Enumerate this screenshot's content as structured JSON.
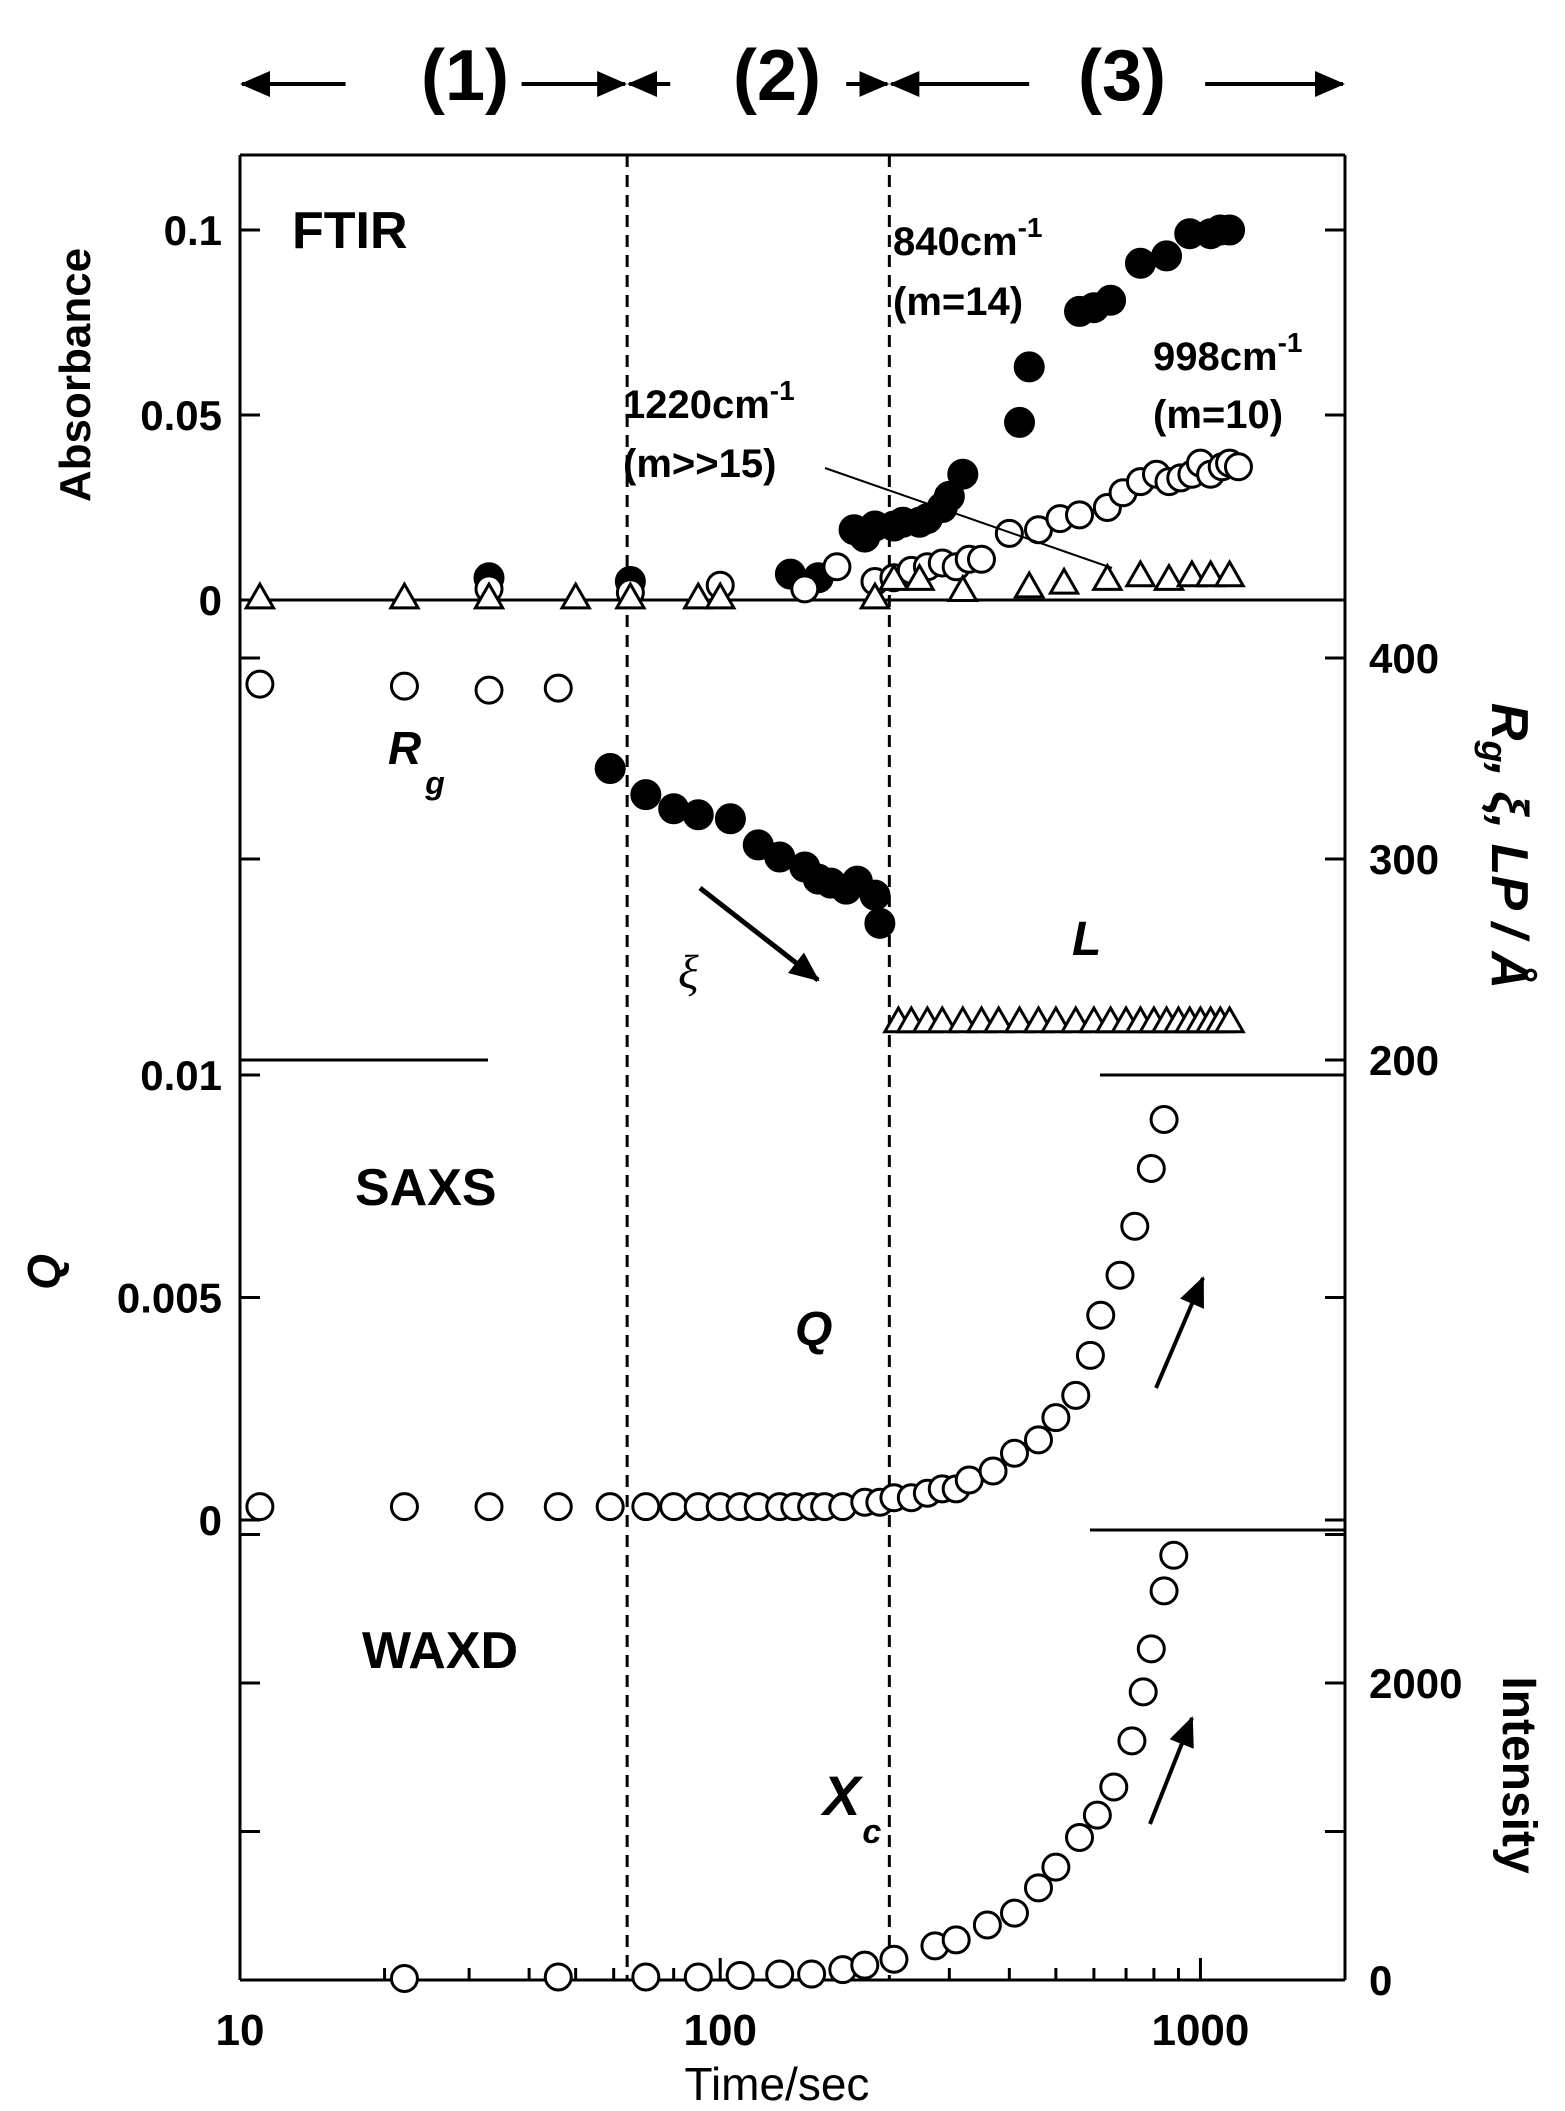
{
  "phases": [
    "(1)",
    "(2)",
    "(3)"
  ],
  "x_axis": {
    "label": "Time/sec",
    "scale": "log",
    "range": [
      10,
      2000
    ],
    "ticks": [
      10,
      100,
      1000
    ],
    "tick_labels": [
      "10",
      "100",
      "1000"
    ],
    "guide_lines": [
      64,
      225
    ]
  },
  "chart_data": [
    {
      "panel": "FTIR",
      "type": "scatter",
      "title": "FTIR",
      "ylabel": "Absorbance",
      "ylim": [
        0,
        0.12
      ],
      "y_ticks": [
        0,
        0.05,
        0.1
      ],
      "y_tick_labels": [
        "0",
        "0.05",
        "0.1"
      ],
      "series": [
        {
          "name": "840cm-1 (m=14)",
          "label_parts": [
            "840cm",
            "-1",
            "(m=14)"
          ],
          "marker": "filled-circle",
          "x": [
            33,
            65,
            140,
            160,
            190,
            200,
            210,
            230,
            240,
            260,
            270,
            290,
            300,
            320,
            420,
            440,
            560,
            600,
            650,
            750,
            850,
            950,
            1050,
            1100,
            1150
          ],
          "y": [
            0.006,
            0.005,
            0.007,
            0.006,
            0.019,
            0.017,
            0.02,
            0.02,
            0.021,
            0.021,
            0.022,
            0.025,
            0.028,
            0.034,
            0.048,
            0.063,
            0.078,
            0.079,
            0.081,
            0.091,
            0.093,
            0.099,
            0.099,
            0.1,
            0.1
          ]
        },
        {
          "name": "998cm-1 (m=10)",
          "label_parts": [
            "998cm",
            "-1",
            "(m=10)"
          ],
          "marker": "open-circle",
          "x": [
            33,
            65,
            100,
            150,
            175,
            210,
            230,
            250,
            270,
            290,
            310,
            330,
            350,
            400,
            460,
            510,
            560,
            640,
            690,
            750,
            810,
            860,
            910,
            960,
            1000,
            1050,
            1110,
            1150,
            1200
          ],
          "y": [
            0.003,
            0.002,
            0.004,
            0.003,
            0.009,
            0.005,
            0.006,
            0.008,
            0.009,
            0.01,
            0.009,
            0.011,
            0.011,
            0.018,
            0.019,
            0.022,
            0.023,
            0.025,
            0.029,
            0.032,
            0.034,
            0.032,
            0.033,
            0.034,
            0.037,
            0.034,
            0.036,
            0.037,
            0.036
          ]
        },
        {
          "name": "1220cm-1 (m>>15)",
          "label_parts": [
            "1220cm",
            "-1",
            "(m>>15)"
          ],
          "marker": "open-triangle",
          "x": [
            11,
            22,
            33,
            50,
            65,
            90,
            100,
            210,
            230,
            260,
            320,
            440,
            520,
            640,
            750,
            860,
            960,
            1050,
            1150
          ],
          "y": [
            0,
            0,
            0,
            0,
            0,
            0,
            0,
            0,
            0.005,
            0.005,
            0.002,
            0.003,
            0.004,
            0.005,
            0.006,
            0.005,
            0.006,
            0.006,
            0.006
          ]
        }
      ]
    },
    {
      "panel": "SAXS-size",
      "type": "scatter",
      "ylabel_parts": [
        "R",
        "g",
        ", ξ, ",
        "LP",
        " / Å"
      ],
      "ylim": [
        200,
        420
      ],
      "y_ticks": [
        200,
        300,
        400
      ],
      "y_tick_labels": [
        "200",
        "300",
        "400"
      ],
      "series": [
        {
          "name": "Rg",
          "label_parts": [
            "R",
            "g"
          ],
          "marker": "open-circle",
          "x": [
            11,
            22,
            33,
            46
          ],
          "y": [
            387,
            386,
            384,
            385
          ]
        },
        {
          "name": "ξ",
          "marker": "filled-circle",
          "x": [
            59,
            70,
            80,
            90,
            105,
            120,
            133,
            150,
            160,
            170,
            183,
            193,
            210,
            215
          ],
          "y": [
            345,
            332,
            325,
            322,
            320,
            307,
            301,
            296,
            290,
            288,
            285,
            289,
            282,
            268
          ]
        },
        {
          "name": "L",
          "marker": "open-triangle",
          "x": [
            235,
            250,
            270,
            290,
            320,
            350,
            380,
            420,
            460,
            500,
            550,
            600,
            650,
            700,
            750,
            800,
            850,
            900,
            950,
            1000,
            1050,
            1100,
            1150
          ],
          "y": [
            218,
            218,
            218,
            218,
            218,
            218,
            218,
            218,
            218,
            218,
            218,
            218,
            218,
            218,
            218,
            218,
            218,
            218,
            218,
            218,
            218,
            218,
            218
          ]
        }
      ]
    },
    {
      "panel": "SAXS",
      "type": "scatter",
      "title": "SAXS",
      "ylabel": "Q",
      "ylim": [
        0,
        0.01
      ],
      "y_ticks": [
        0,
        0.005,
        0.01
      ],
      "y_tick_labels": [
        "0",
        "0.005",
        "0.01"
      ],
      "series": [
        {
          "name": "Q",
          "marker": "open-circle",
          "x": [
            11,
            22,
            33,
            46,
            59,
            70,
            80,
            90,
            100,
            110,
            120,
            133,
            143,
            155,
            165,
            180,
            200,
            215,
            230,
            250,
            270,
            290,
            310,
            330,
            370,
            410,
            460,
            500,
            550,
            590,
            620,
            680,
            730,
            790,
            840
          ],
          "y": [
            0.0003,
            0.0003,
            0.0003,
            0.0003,
            0.0003,
            0.0003,
            0.0003,
            0.0003,
            0.0003,
            0.0003,
            0.0003,
            0.0003,
            0.0003,
            0.0003,
            0.0003,
            0.0003,
            0.0004,
            0.0004,
            0.0005,
            0.0005,
            0.0006,
            0.0007,
            0.0007,
            0.0009,
            0.0011,
            0.0015,
            0.0018,
            0.0023,
            0.0028,
            0.0037,
            0.0046,
            0.0055,
            0.0066,
            0.0079,
            0.009
          ]
        }
      ]
    },
    {
      "panel": "WAXD",
      "type": "scatter",
      "title": "WAXD",
      "ylabel": "Intensity",
      "ylim": [
        0,
        3000
      ],
      "y_ticks": [
        0,
        1000,
        2000,
        3000
      ],
      "y_tick_labels": [
        "0",
        "",
        "2000",
        ""
      ],
      "series": [
        {
          "name": "Xc",
          "label_parts": [
            "X",
            "c"
          ],
          "marker": "open-circle",
          "x": [
            22,
            46,
            70,
            90,
            110,
            133,
            155,
            180,
            200,
            230,
            280,
            310,
            360,
            410,
            460,
            500,
            560,
            610,
            660,
            720,
            760,
            790,
            840,
            880
          ],
          "y": [
            10,
            20,
            20,
            20,
            30,
            40,
            40,
            70,
            100,
            140,
            230,
            270,
            370,
            450,
            620,
            760,
            960,
            1110,
            1300,
            1610,
            1940,
            2230,
            2620,
            2860
          ]
        }
      ]
    }
  ]
}
